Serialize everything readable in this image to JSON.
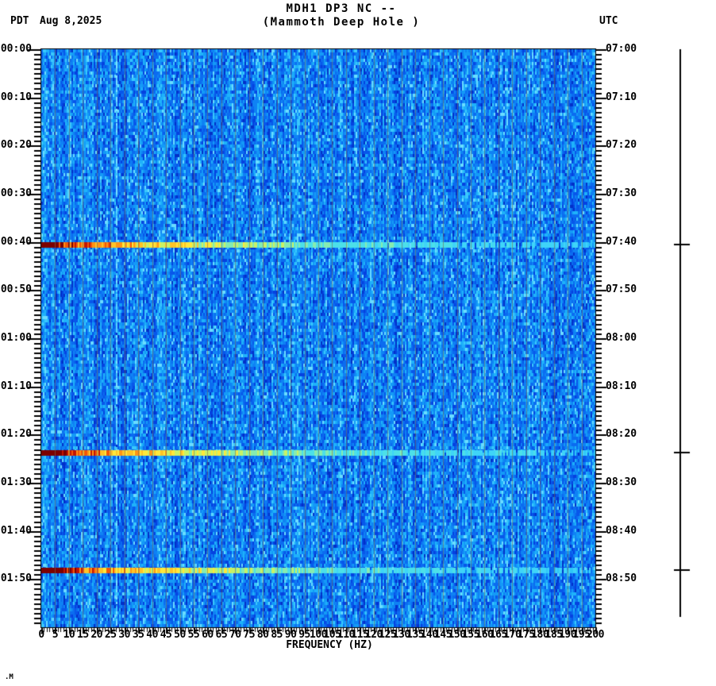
{
  "header": {
    "timezone_left": "PDT",
    "date": "Aug 8,2025",
    "title_line1": "MDH1 DP3 NC --",
    "title_line2": "(Mammoth Deep Hole )",
    "timezone_right": "UTC"
  },
  "x_axis": {
    "title": "FREQUENCY (HZ)",
    "labels": [
      "0",
      "5",
      "10",
      "15",
      "20",
      "25",
      "30",
      "35",
      "40",
      "45",
      "50",
      "55",
      "60",
      "65",
      "70",
      "75",
      "80",
      "85",
      "90",
      "95",
      "100",
      "105",
      "110",
      "115",
      "120",
      "125",
      "130",
      "135",
      "140",
      "145",
      "150",
      "155",
      "160",
      "165",
      "170",
      "175",
      "180",
      "185",
      "190",
      "195",
      "200"
    ]
  },
  "y_axis_left": {
    "labels": [
      "00:00",
      "00:10",
      "00:20",
      "00:30",
      "00:40",
      "00:50",
      "01:00",
      "01:10",
      "01:20",
      "01:30",
      "01:40",
      "01:50"
    ]
  },
  "y_axis_right": {
    "labels": [
      "07:00",
      "07:10",
      "07:20",
      "07:30",
      "07:40",
      "07:50",
      "08:00",
      "08:10",
      "08:20",
      "08:30",
      "08:40",
      "08:50"
    ]
  },
  "watermark": ".M",
  "chart_data": {
    "type": "heatmap",
    "subtype": "seismic-spectrogram",
    "title": "MDH1 DP3 NC -- (Mammoth Deep Hole )",
    "station": "MDH1 DP3 NC",
    "station_name": "Mammoth Deep Hole",
    "date": "Aug 8,2025",
    "xlabel": "FREQUENCY (HZ)",
    "x_range_hz": [
      0,
      200
    ],
    "x_major_tick_hz": 5,
    "x_minor_tick_hz": 1,
    "time_axis": {
      "left_timezone": "PDT",
      "right_timezone": "UTC",
      "start_pdt": "00:00",
      "end_pdt": "02:00",
      "start_utc": "07:00",
      "end_utc": "09:00",
      "major_tick_min": 10,
      "minor_tick_min": 1
    },
    "grid": "on",
    "grid_lines_every_hz": 5,
    "legend_position": "none",
    "background": "low-amplitude blue noise spanning 0-200 Hz for full 2-hour window",
    "persistent_tone_hz": 27,
    "events": [
      {
        "time_pdt": "00:40",
        "time_utc": "07:40",
        "minutes_from_start": 40.5,
        "description": "broadband burst: saturated dark red below ~8 Hz, red/orange stripes to ~25 Hz, yellow to ~55 Hz, bright cyan fading toward 200 Hz"
      },
      {
        "time_pdt": "01:24",
        "time_utc": "08:24",
        "minutes_from_start": 83.8,
        "description": "broadband burst: saturated dark red below ~8 Hz, red/orange stripes to ~25 Hz, yellow to ~55 Hz, bright cyan fading toward 200 Hz"
      },
      {
        "time_pdt": "01:48",
        "time_utc": "08:48",
        "minutes_from_start": 108.2,
        "description": "broadband burst: saturated dark red below ~8 Hz, red/orange stripes to ~25 Hz, yellow to ~55 Hz, bright cyan fading toward 200 Hz"
      }
    ],
    "event_marker_bar": {
      "position": "far right",
      "tick_minutes": [
        40.5,
        83.8,
        108.2
      ]
    },
    "colors": {
      "axis": "#000000",
      "gridline": "rgba(118,110,86,0.6)",
      "background_blues": [
        "#0230c8",
        "#0542e0",
        "#0857ea",
        "#0b6cf0",
        "#0f82f4",
        "#149af7",
        "#1fb2fa",
        "#3ac8fc",
        "#6adcff"
      ],
      "event_scale": [
        "#1f86ee",
        "#2fa6f6",
        "#2fc6f8",
        "#3fd4f8",
        "#4ce0e8",
        "#86ecb0",
        "#c8f266",
        "#ffe83c",
        "#ffc428",
        "#ff9416",
        "#f25608",
        "#c21404",
        "#7c0000"
      ],
      "tone_line": [
        "#58d2ff",
        "#41c4fc",
        "#7ce2ff"
      ]
    }
  }
}
